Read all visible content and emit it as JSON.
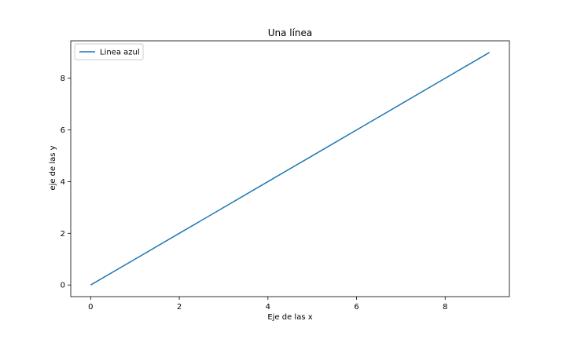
{
  "chart_data": {
    "type": "line",
    "title": "Una línea",
    "xlabel": "Eje de las x",
    "ylabel": "eje de las y",
    "x": [
      0,
      1,
      2,
      3,
      4,
      5,
      6,
      7,
      8,
      9
    ],
    "series": [
      {
        "name": "Linea azul",
        "values": [
          0,
          1,
          2,
          3,
          4,
          5,
          6,
          7,
          8,
          9
        ],
        "color": "#1f77b4"
      }
    ],
    "xlim": [
      -0.45,
      9.45
    ],
    "ylim": [
      -0.45,
      9.45
    ],
    "xticks": [
      0,
      2,
      4,
      6,
      8
    ],
    "yticks": [
      0,
      2,
      4,
      6,
      8
    ],
    "grid": false,
    "legend": "top-left"
  }
}
